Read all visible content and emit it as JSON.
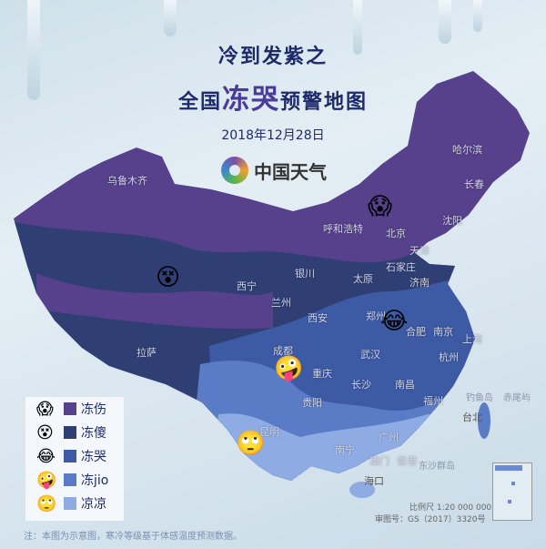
{
  "title": {
    "line1": "冷到发紫之",
    "line2_prefix": "全国",
    "line2_highlight": "冻哭",
    "line2_suffix": "预警地图"
  },
  "date": "2018年12月28日",
  "logo": {
    "text": "中国天气"
  },
  "colors": {
    "frostbite": "#57408c",
    "numb": "#2f3f74",
    "crying": "#3d5aa5",
    "jio": "#5a7cc6",
    "cool": "#8eabe4",
    "background": "#d8e6ef",
    "title": "#1f2a6b"
  },
  "legend": [
    {
      "emoji": "😱",
      "icon": "screaming-face-icon",
      "label": "冻伤",
      "color": "#57408c"
    },
    {
      "emoji": "😵",
      "icon": "dizzy-face-icon",
      "label": "冻傻",
      "color": "#2f3f74"
    },
    {
      "emoji": "😂",
      "icon": "tears-of-joy-face-icon",
      "label": "冻哭",
      "color": "#3d5aa5"
    },
    {
      "emoji": "🤪",
      "icon": "zany-face-icon",
      "label": "冻jio",
      "color": "#5a7cc6"
    },
    {
      "emoji": "🙄",
      "icon": "eye-roll-face-icon",
      "label": "凉凉",
      "color": "#8eabe4"
    }
  ],
  "map_emojis": [
    "😱",
    "😵",
    "😂",
    "🤪",
    "🙄"
  ],
  "cities": {
    "urumqi": "乌鲁木齐",
    "harbin": "哈尔滨",
    "changchun": "长春",
    "shenyang": "沈阳",
    "hohhot": "呼和浩特",
    "beijing": "北京",
    "tianjin": "天津",
    "shijiazhuang": "石家庄",
    "taiyuan": "太原",
    "jinan": "济南",
    "yinchuan": "银川",
    "xining": "西宁",
    "lanzhou": "兰州",
    "xian": "西安",
    "zhengzhou": "郑州",
    "hefei": "合肥",
    "nanjing": "南京",
    "shanghai": "上海",
    "lhasa": "拉萨",
    "chengdu": "成都",
    "wuhan": "武汉",
    "hangzhou": "杭州",
    "chongqing": "重庆",
    "changsha": "长沙",
    "nanchang": "南昌",
    "guiyang": "贵阳",
    "fuzhou": "福州",
    "taipei": "台北",
    "kunming": "昆明",
    "guangzhou": "广州",
    "nanning": "南宁",
    "macau": "澳门",
    "hongkong": "香港",
    "haikou": "海口"
  },
  "islands": {
    "diaoyu": "钓鱼岛",
    "chiwei": "赤尾屿",
    "dongsha": "东沙群岛"
  },
  "footer": {
    "note": "注：本图为示意图，寒冷等级基于体感温度预测数据。",
    "scale": "比例尺 1:20 000 000",
    "approval": "审图号：GS（2017）3320号"
  }
}
